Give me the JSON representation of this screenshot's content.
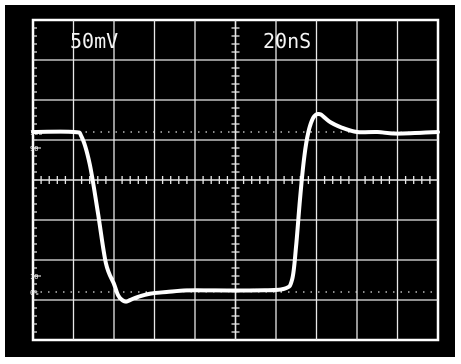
{
  "chart_data": {
    "type": "line",
    "title": "",
    "xlabel": "",
    "ylabel": "",
    "scale_labels": {
      "volts_per_div": "50mV",
      "time_per_div": "20nS"
    },
    "level_markers": [
      {
        "label": "100",
        "value": 100
      },
      {
        "label": "90",
        "value": 90
      },
      {
        "label": "10",
        "value": 10
      },
      {
        "label": "0%",
        "value": 0
      }
    ],
    "xlim": [
      0,
      10
    ],
    "ylim": [
      -30,
      170
    ],
    "grid": true,
    "graticule": {
      "x_divisions": 10,
      "y_divisions": 8,
      "minor_ticks_per_div": 5
    },
    "colors": {
      "screen": "#000000",
      "grid": "#e8e8e8",
      "trace": "#ffffff",
      "frame": "#ffffff"
    },
    "series": [
      {
        "x": [
          0,
          1.0,
          1.2,
          1.4,
          1.6,
          1.8,
          2.0,
          2.1,
          2.2,
          2.3,
          2.4,
          2.6,
          2.9,
          3.3,
          3.8,
          4.5,
          5.5,
          6.2,
          6.4,
          6.5,
          6.6,
          6.7,
          6.8,
          6.9,
          7.0,
          7.1,
          7.2,
          7.35,
          7.6,
          8.0,
          8.5,
          9.0,
          10.0
        ],
        "y": [
          100,
          100,
          97,
          80,
          50,
          18,
          5,
          -2,
          -5,
          -6,
          -5,
          -3,
          -1,
          0,
          1,
          1,
          1,
          2,
          8,
          30,
          60,
          85,
          100,
          108,
          111,
          111,
          109,
          106,
          103,
          100,
          100,
          99,
          100
        ]
      }
    ]
  }
}
